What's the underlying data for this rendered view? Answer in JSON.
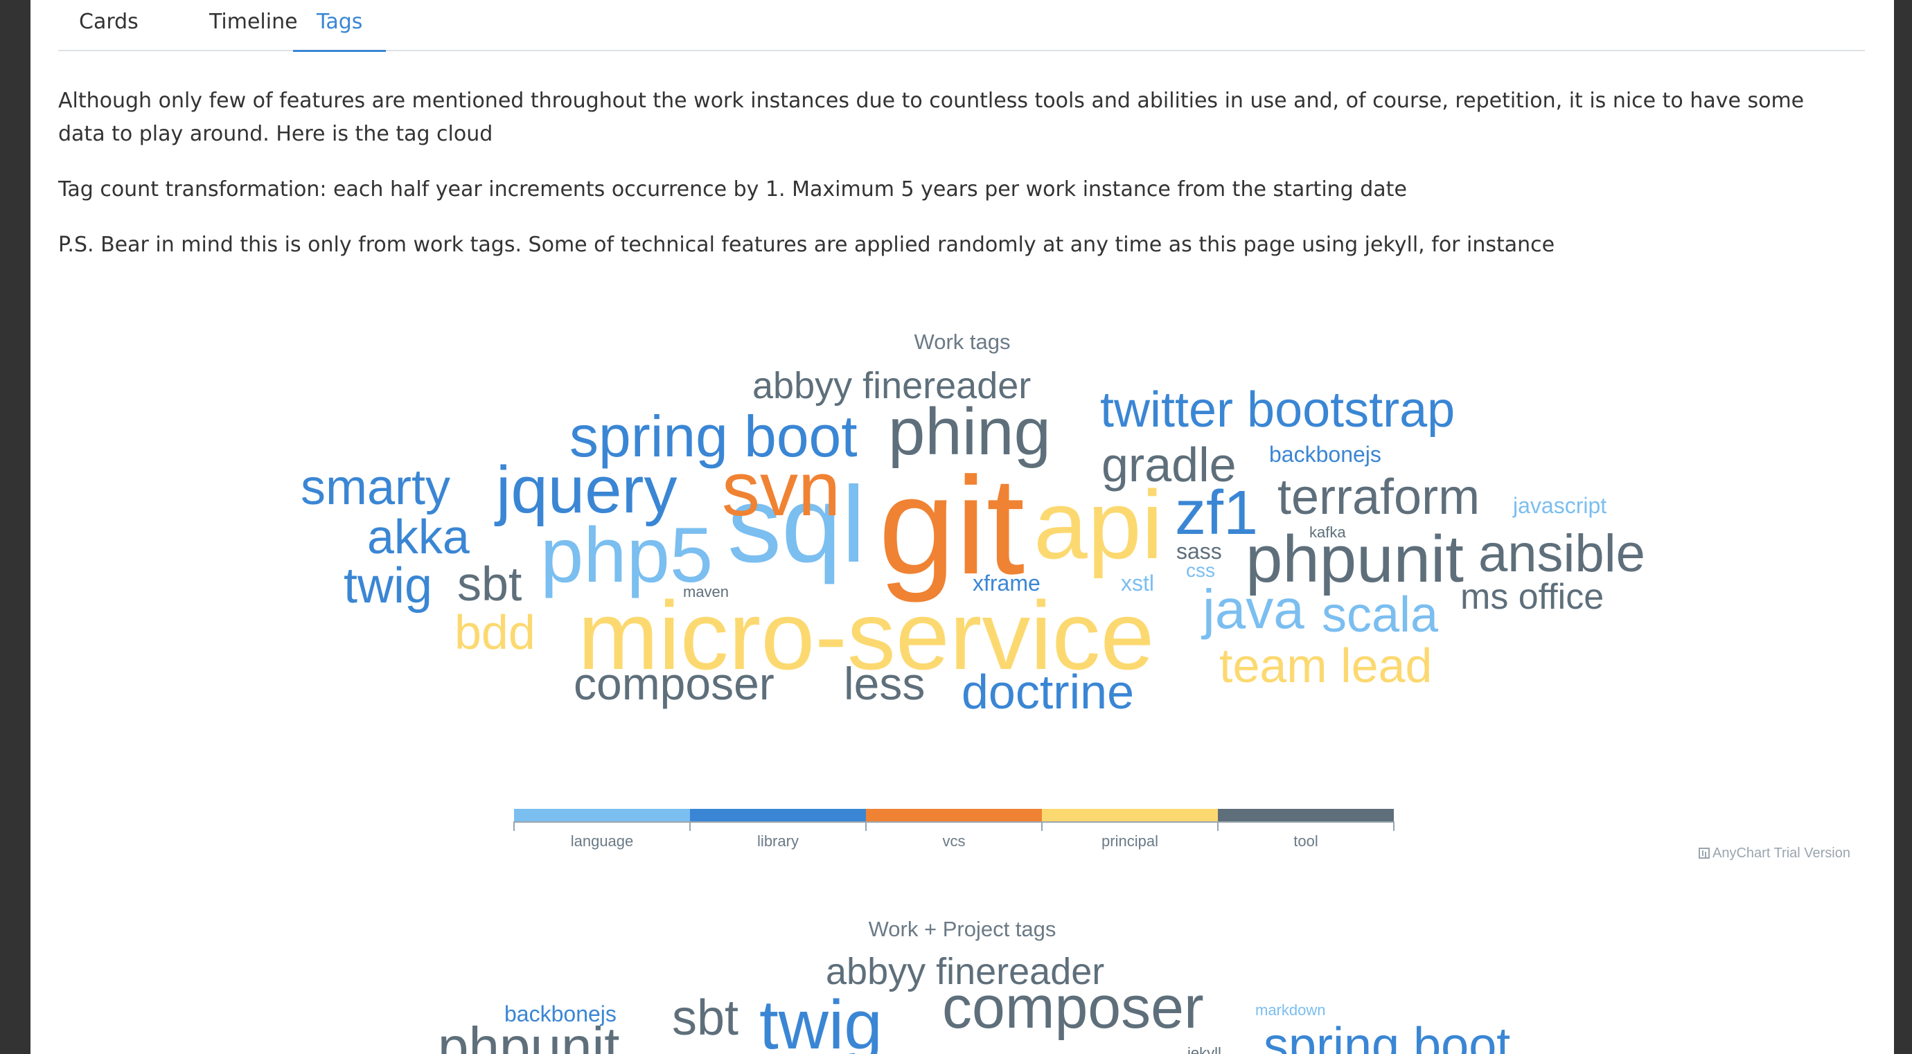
{
  "tabs": [
    "Cards",
    "Timeline",
    "Tags"
  ],
  "active_tab": "Tags",
  "intro": {
    "p1": "Although only few of features are mentioned throughout the work instances due to countless tools and abilities in use and, of course, repetition, it is nice to have some data to play around. Here is the tag cloud",
    "p2": "Tag count transformation: each half year increments occurrence by 1. Maximum 5 years per work instance from the starting date",
    "p3": "P.S. Bear in mind this is only from work tags. Some of technical features are applied randomly at any time as this page using jekyll, for instance"
  },
  "colors": {
    "language": "#7bbef0",
    "library": "#3a86d4",
    "vcs": "#f08233",
    "principal": "#fcd970",
    "tool": "#5e6f7b"
  },
  "chart_data": [
    {
      "type": "tag-cloud",
      "title": "Work tags",
      "legend": [
        "language",
        "library",
        "vcs",
        "principal",
        "tool"
      ],
      "credits": "AnyChart Trial Version",
      "words": [
        {
          "text": "git",
          "category": "vcs"
        },
        {
          "text": "micro-service",
          "category": "principal"
        },
        {
          "text": "sql",
          "category": "language"
        },
        {
          "text": "api",
          "category": "principal"
        },
        {
          "text": "php5",
          "category": "language"
        },
        {
          "text": "phpunit",
          "category": "tool"
        },
        {
          "text": "svn",
          "category": "vcs"
        },
        {
          "text": "jquery",
          "category": "library"
        },
        {
          "text": "phing",
          "category": "tool"
        },
        {
          "text": "zf1",
          "category": "library"
        },
        {
          "text": "spring boot",
          "category": "library"
        },
        {
          "text": "twitter bootstrap",
          "category": "library"
        },
        {
          "text": "java",
          "category": "language"
        },
        {
          "text": "scala",
          "category": "language"
        },
        {
          "text": "terraform",
          "category": "tool"
        },
        {
          "text": "ansible",
          "category": "tool"
        },
        {
          "text": "gradle",
          "category": "tool"
        },
        {
          "text": "composer",
          "category": "tool"
        },
        {
          "text": "doctrine",
          "category": "library"
        },
        {
          "text": "smarty",
          "category": "library"
        },
        {
          "text": "less",
          "category": "tool"
        },
        {
          "text": "team lead",
          "category": "principal"
        },
        {
          "text": "abbyy finereader",
          "category": "tool"
        },
        {
          "text": "akka",
          "category": "library"
        },
        {
          "text": "twig",
          "category": "library"
        },
        {
          "text": "sbt",
          "category": "tool"
        },
        {
          "text": "bdd",
          "category": "principal"
        },
        {
          "text": "ms office",
          "category": "tool"
        },
        {
          "text": "xframe",
          "category": "library"
        },
        {
          "text": "backbonejs",
          "category": "library"
        },
        {
          "text": "javascript",
          "category": "language"
        },
        {
          "text": "xstl",
          "category": "language"
        },
        {
          "text": "sass",
          "category": "tool"
        },
        {
          "text": "css",
          "category": "language"
        },
        {
          "text": "kafka",
          "category": "tool"
        },
        {
          "text": "maven",
          "category": "tool"
        }
      ]
    },
    {
      "type": "tag-cloud",
      "title": "Work + Project tags",
      "words": [
        {
          "text": "abbyy finereader",
          "category": "tool"
        },
        {
          "text": "composer",
          "category": "tool"
        },
        {
          "text": "twig",
          "category": "library"
        },
        {
          "text": "sbt",
          "category": "tool"
        },
        {
          "text": "backbonejs",
          "category": "library"
        },
        {
          "text": "markdown",
          "category": "language"
        },
        {
          "text": "phpunit",
          "category": "tool"
        },
        {
          "text": "spring boot",
          "category": "library"
        },
        {
          "text": "jekyll",
          "category": "tool"
        }
      ]
    }
  ]
}
